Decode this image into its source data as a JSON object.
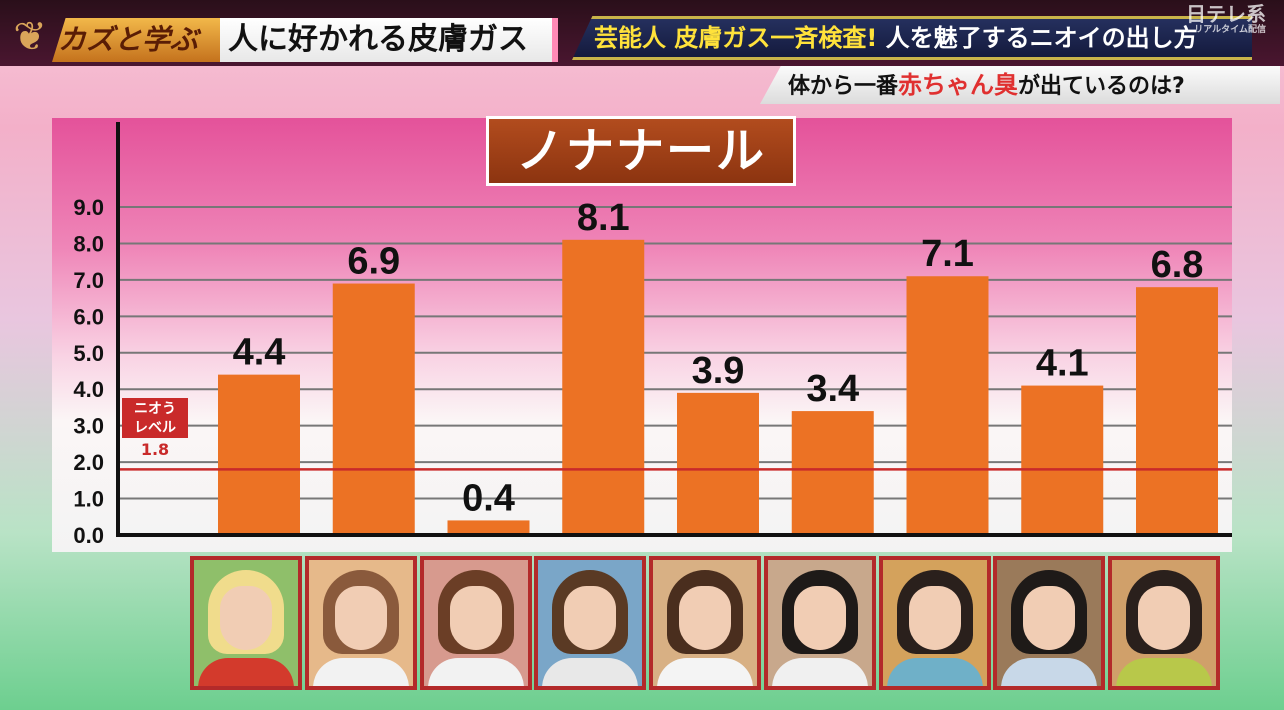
{
  "header": {
    "segment_a": "カズと学ぶ",
    "segment_b": "人に好かれる皮膚ガス",
    "headline_1_part1": "芸能人 皮膚ガス一斉検査!",
    "headline_1_part2": "人を魅了するニオイの出し方",
    "network_logo": "日テレ系",
    "network_sub": "リアルタイム配信",
    "question_part1": "体から一番",
    "question_highlight": "赤ちゃん臭",
    "question_part2": "が出ているのは?"
  },
  "chart_data": {
    "type": "bar",
    "title": "ノナナール",
    "categories": [
      "",
      "",
      "",
      "",
      "",
      "",
      "",
      "",
      ""
    ],
    "values": [
      4.4,
      6.9,
      0.4,
      8.1,
      3.9,
      3.4,
      7.1,
      4.1,
      6.8
    ],
    "value_labels": [
      "4.4",
      "6.9",
      "0.4",
      "8.1",
      "3.9",
      "3.4",
      "7.1",
      "4.1",
      "6.8"
    ],
    "y_ticks": [
      "0.0",
      "1.0",
      "2.0",
      "3.0",
      "4.0",
      "5.0",
      "6.0",
      "7.0",
      "8.0",
      "9.0"
    ],
    "ylim": [
      0,
      9
    ],
    "grid": true,
    "reference_line": {
      "label_line1": "ニオう",
      "label_line2": "レベル",
      "value": 1.8,
      "value_label": "1.8"
    },
    "colors": {
      "bar": "#ec7224",
      "reference": "#c92a2a",
      "axis": "#111111"
    }
  },
  "photos": [
    {
      "hair": "#f0dc8c",
      "body": "#d33a2c",
      "bg": "#8fbf6a"
    },
    {
      "hair": "#8a5a3c",
      "body": "#f2f2f2",
      "bg": "#e6b98a"
    },
    {
      "hair": "#6b3e26",
      "body": "#f2f2f2",
      "bg": "#d79a8e"
    },
    {
      "hair": "#5a3a24",
      "body": "#e8e8e8",
      "bg": "#7aa6c8"
    },
    {
      "hair": "#4a2e1e",
      "body": "#f4f4f4",
      "bg": "#d8b084"
    },
    {
      "hair": "#1e1a18",
      "body": "#f0f0f0",
      "bg": "#c8a88c"
    },
    {
      "hair": "#2a201c",
      "body": "#6fb0c8",
      "bg": "#d4a25c"
    },
    {
      "hair": "#1e1a18",
      "body": "#c8d8e8",
      "bg": "#9a7a5a"
    },
    {
      "hair": "#2a201c",
      "body": "#b8c84a",
      "bg": "#d0a06a"
    }
  ]
}
